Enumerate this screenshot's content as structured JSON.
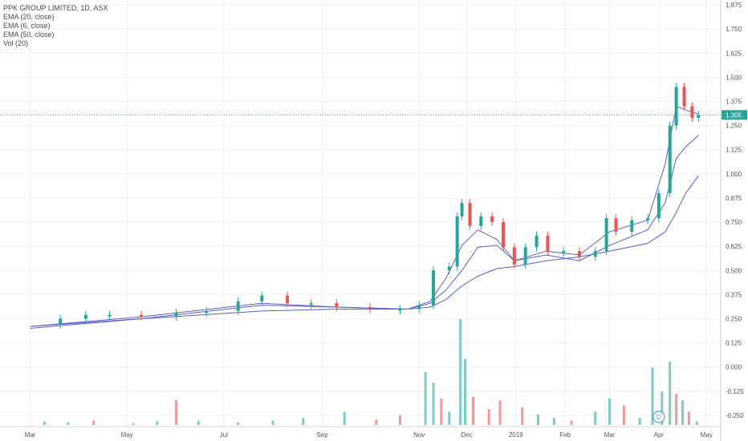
{
  "chart_data": {
    "type": "candlestick",
    "title": "PPK GROUP LIMITED, 1D, ASX",
    "indicators": [
      "EMA (20, close)",
      "EMA (6, close)",
      "EMA (50, close)",
      "Vol (20)"
    ],
    "last_price": "1.305",
    "x_tick_labels": [
      "Mar",
      "May",
      "Jul",
      "Sep",
      "Nov",
      "Dec",
      "2019",
      "Feb",
      "Mar",
      "Apr",
      "May"
    ],
    "y_tick_labels": [
      "1.875",
      "1.750",
      "1.625",
      "1.500",
      "1.375",
      "1.250",
      "1.125",
      "1.000",
      "0.875",
      "0.750",
      "0.625",
      "0.500",
      "0.375",
      "0.250",
      "0.125",
      "0.000",
      "-0.125",
      "-0.250"
    ],
    "ylim": [
      -0.3,
      1.9
    ],
    "grid": true,
    "dividend_marker": "D",
    "colors": {
      "up": "#26a69a",
      "down": "#ef5350",
      "ema": "#5b5fc7",
      "vol_up": "#80cbc4",
      "vol_down": "#ef9a9a"
    },
    "price_series": [
      {
        "date": "2018-03-01",
        "price": 0.22
      },
      {
        "date": "2018-03-20",
        "price": 0.25
      },
      {
        "date": "2018-04-05",
        "price": 0.27
      },
      {
        "date": "2018-04-20",
        "price": 0.27
      },
      {
        "date": "2018-05-10",
        "price": 0.26
      },
      {
        "date": "2018-06-01",
        "price": 0.28
      },
      {
        "date": "2018-06-20",
        "price": 0.29
      },
      {
        "date": "2018-07-10",
        "price": 0.34
      },
      {
        "date": "2018-07-25",
        "price": 0.37
      },
      {
        "date": "2018-08-10",
        "price": 0.33
      },
      {
        "date": "2018-08-25",
        "price": 0.33
      },
      {
        "date": "2018-09-10",
        "price": 0.31
      },
      {
        "date": "2018-10-01",
        "price": 0.3
      },
      {
        "date": "2018-10-20",
        "price": 0.3
      },
      {
        "date": "2018-11-01",
        "price": 0.32
      },
      {
        "date": "2018-11-10",
        "price": 0.5
      },
      {
        "date": "2018-11-20",
        "price": 0.52
      },
      {
        "date": "2018-11-25",
        "price": 0.78
      },
      {
        "date": "2018-11-28",
        "price": 0.85
      },
      {
        "date": "2018-12-03",
        "price": 0.73
      },
      {
        "date": "2018-12-10",
        "price": 0.78
      },
      {
        "date": "2018-12-17",
        "price": 0.75
      },
      {
        "date": "2018-12-24",
        "price": 0.62
      },
      {
        "date": "2018-12-31",
        "price": 0.53
      },
      {
        "date": "2019-01-07",
        "price": 0.62
      },
      {
        "date": "2019-01-14",
        "price": 0.68
      },
      {
        "date": "2019-01-21",
        "price": 0.6
      },
      {
        "date": "2019-01-31",
        "price": 0.6
      },
      {
        "date": "2019-02-10",
        "price": 0.57
      },
      {
        "date": "2019-02-20",
        "price": 0.6
      },
      {
        "date": "2019-02-27",
        "price": 0.77
      },
      {
        "date": "2019-03-05",
        "price": 0.7
      },
      {
        "date": "2019-03-15",
        "price": 0.76
      },
      {
        "date": "2019-03-25",
        "price": 0.77
      },
      {
        "date": "2019-04-01",
        "price": 0.9
      },
      {
        "date": "2019-04-08",
        "price": 1.25
      },
      {
        "date": "2019-04-12",
        "price": 1.45
      },
      {
        "date": "2019-04-17",
        "price": 1.35
      },
      {
        "date": "2019-04-22",
        "price": 1.29
      },
      {
        "date": "2019-04-26",
        "price": 1.305
      }
    ],
    "ema_fast": [
      {
        "date": "2018-03-01",
        "value": 0.21
      },
      {
        "date": "2018-05-10",
        "value": 0.26
      },
      {
        "date": "2018-07-25",
        "value": 0.33
      },
      {
        "date": "2018-09-10",
        "value": 0.31
      },
      {
        "date": "2018-10-25",
        "value": 0.3
      },
      {
        "date": "2018-11-08",
        "value": 0.34
      },
      {
        "date": "2018-11-18",
        "value": 0.46
      },
      {
        "date": "2018-11-28",
        "value": 0.63
      },
      {
        "date": "2018-12-08",
        "value": 0.71
      },
      {
        "date": "2018-12-20",
        "value": 0.66
      },
      {
        "date": "2018-12-31",
        "value": 0.55
      },
      {
        "date": "2019-01-20",
        "value": 0.6
      },
      {
        "date": "2019-02-10",
        "value": 0.58
      },
      {
        "date": "2019-03-01",
        "value": 0.7
      },
      {
        "date": "2019-03-25",
        "value": 0.76
      },
      {
        "date": "2019-04-05",
        "value": 1.05
      },
      {
        "date": "2019-04-12",
        "value": 1.35
      },
      {
        "date": "2019-04-18",
        "value": 1.33
      },
      {
        "date": "2019-04-26",
        "value": 1.31
      }
    ],
    "ema_mid": [
      {
        "date": "2018-03-01",
        "value": 0.21
      },
      {
        "date": "2018-05-10",
        "value": 0.25
      },
      {
        "date": "2018-07-25",
        "value": 0.32
      },
      {
        "date": "2018-09-10",
        "value": 0.31
      },
      {
        "date": "2018-10-25",
        "value": 0.3
      },
      {
        "date": "2018-11-08",
        "value": 0.33
      },
      {
        "date": "2018-11-18",
        "value": 0.4
      },
      {
        "date": "2018-11-28",
        "value": 0.5
      },
      {
        "date": "2018-12-08",
        "value": 0.62
      },
      {
        "date": "2018-12-20",
        "value": 0.63
      },
      {
        "date": "2018-12-31",
        "value": 0.55
      },
      {
        "date": "2019-01-20",
        "value": 0.58
      },
      {
        "date": "2019-02-10",
        "value": 0.55
      },
      {
        "date": "2019-03-01",
        "value": 0.63
      },
      {
        "date": "2019-03-25",
        "value": 0.71
      },
      {
        "date": "2019-04-05",
        "value": 0.85
      },
      {
        "date": "2019-04-12",
        "value": 1.08
      },
      {
        "date": "2019-04-18",
        "value": 1.14
      },
      {
        "date": "2019-04-26",
        "value": 1.2
      }
    ],
    "ema_slow": [
      {
        "date": "2018-03-01",
        "value": 0.2
      },
      {
        "date": "2018-05-10",
        "value": 0.25
      },
      {
        "date": "2018-07-25",
        "value": 0.29
      },
      {
        "date": "2018-09-10",
        "value": 0.3
      },
      {
        "date": "2018-10-25",
        "value": 0.3
      },
      {
        "date": "2018-11-08",
        "value": 0.31
      },
      {
        "date": "2018-11-18",
        "value": 0.35
      },
      {
        "date": "2018-11-28",
        "value": 0.42
      },
      {
        "date": "2018-12-08",
        "value": 0.47
      },
      {
        "date": "2018-12-20",
        "value": 0.51
      },
      {
        "date": "2018-12-31",
        "value": 0.52
      },
      {
        "date": "2019-01-20",
        "value": 0.55
      },
      {
        "date": "2019-02-10",
        "value": 0.57
      },
      {
        "date": "2019-03-01",
        "value": 0.6
      },
      {
        "date": "2019-03-25",
        "value": 0.64
      },
      {
        "date": "2019-04-05",
        "value": 0.7
      },
      {
        "date": "2019-04-12",
        "value": 0.8
      },
      {
        "date": "2019-04-18",
        "value": 0.9
      },
      {
        "date": "2019-04-26",
        "value": 0.99
      }
    ],
    "volume_bars": [
      {
        "date": "2018-03-10",
        "vol": 4,
        "up": true
      },
      {
        "date": "2018-03-25",
        "vol": 3,
        "up": true
      },
      {
        "date": "2018-04-10",
        "vol": 5,
        "up": false
      },
      {
        "date": "2018-05-05",
        "vol": 2,
        "up": true
      },
      {
        "date": "2018-05-20",
        "vol": 4,
        "up": true
      },
      {
        "date": "2018-06-01",
        "vol": 28,
        "up": false
      },
      {
        "date": "2018-06-15",
        "vol": 5,
        "up": true
      },
      {
        "date": "2018-07-10",
        "vol": 3,
        "up": true
      },
      {
        "date": "2018-08-01",
        "vol": 5,
        "up": true
      },
      {
        "date": "2018-08-20",
        "vol": 8,
        "up": true
      },
      {
        "date": "2018-09-15",
        "vol": 15,
        "up": true
      },
      {
        "date": "2018-10-05",
        "vol": 6,
        "up": false
      },
      {
        "date": "2018-10-20",
        "vol": 11,
        "up": false
      },
      {
        "date": "2018-11-05",
        "vol": 60,
        "up": true
      },
      {
        "date": "2018-11-10",
        "vol": 48,
        "up": true
      },
      {
        "date": "2018-11-15",
        "vol": 30,
        "up": false
      },
      {
        "date": "2018-11-20",
        "vol": 15,
        "up": true
      },
      {
        "date": "2018-11-27",
        "vol": 120,
        "up": true
      },
      {
        "date": "2018-11-30",
        "vol": 75,
        "up": true
      },
      {
        "date": "2018-12-05",
        "vol": 32,
        "up": false
      },
      {
        "date": "2018-12-15",
        "vol": 18,
        "up": false
      },
      {
        "date": "2018-12-22",
        "vol": 28,
        "up": false
      },
      {
        "date": "2019-01-05",
        "vol": 20,
        "up": false
      },
      {
        "date": "2019-01-15",
        "vol": 12,
        "up": true
      },
      {
        "date": "2019-01-25",
        "vol": 8,
        "up": true
      },
      {
        "date": "2019-02-05",
        "vol": 5,
        "up": false
      },
      {
        "date": "2019-02-20",
        "vol": 15,
        "up": true
      },
      {
        "date": "2019-03-01",
        "vol": 30,
        "up": true
      },
      {
        "date": "2019-03-10",
        "vol": 22,
        "up": false
      },
      {
        "date": "2019-03-20",
        "vol": 8,
        "up": true
      },
      {
        "date": "2019-03-28",
        "vol": 65,
        "up": true
      },
      {
        "date": "2019-04-03",
        "vol": 38,
        "up": true
      },
      {
        "date": "2019-04-08",
        "vol": 72,
        "up": true
      },
      {
        "date": "2019-04-12",
        "vol": 35,
        "up": false
      },
      {
        "date": "2019-04-16",
        "vol": 28,
        "up": true
      },
      {
        "date": "2019-04-20",
        "vol": 15,
        "up": false
      },
      {
        "date": "2019-04-25",
        "vol": 4,
        "up": true
      }
    ]
  }
}
